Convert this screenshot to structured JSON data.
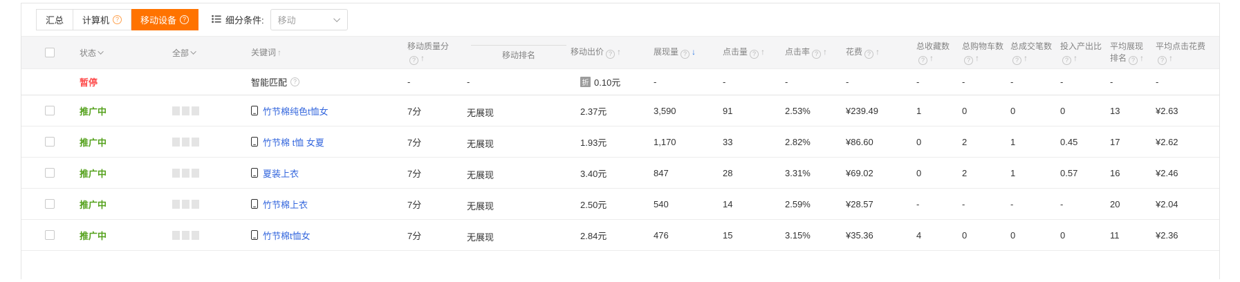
{
  "colors": {
    "accent": "#ff7300",
    "status_paused": "#fe4d4d",
    "status_active": "#54a11c",
    "keyword_link": "#3366dd",
    "sort_active_arrow": "#2f7ae5"
  },
  "icons": {
    "filter": "list-icon",
    "keyword_device": "mobile-phone-icon",
    "help": "question-circle-icon"
  },
  "toolbar": {
    "tabs": [
      {
        "key": "summary",
        "label": "汇总",
        "selected": false,
        "help": false
      },
      {
        "key": "computer",
        "label": "计算机",
        "selected": false,
        "help": true
      },
      {
        "key": "mobile",
        "label": "移动设备",
        "selected": true,
        "help": true
      }
    ],
    "filter_label": "细分条件:",
    "filter_value": "移动"
  },
  "table": {
    "header": {
      "status": "状态",
      "scope": "全部",
      "columns": [
        {
          "key": "keyword",
          "label": "关键词",
          "help": false,
          "sort": "up"
        },
        {
          "key": "quality",
          "label": "移动质量分",
          "help": true,
          "sort": "up"
        },
        {
          "key": "rank",
          "label": "移动排名",
          "help": false,
          "sort": "",
          "subline": true
        },
        {
          "key": "bid",
          "label": "移动出价",
          "help": true,
          "sort": "up"
        },
        {
          "key": "impressions",
          "label": "展现量",
          "help": true,
          "sort": "down",
          "sort_active": true
        },
        {
          "key": "clicks",
          "label": "点击量",
          "help": true,
          "sort": "up"
        },
        {
          "key": "ctr",
          "label": "点击率",
          "help": true,
          "sort": "up"
        },
        {
          "key": "spend",
          "label": "花费",
          "help": true,
          "sort": "up"
        },
        {
          "key": "favorites",
          "label": "总收藏数",
          "help": true,
          "sort": "up"
        },
        {
          "key": "carts",
          "label": "总购物车数",
          "help": true,
          "sort": "up"
        },
        {
          "key": "orders",
          "label": "总成交笔数",
          "help": true,
          "sort": "up"
        },
        {
          "key": "roi",
          "label": "投入产出比",
          "help": true,
          "sort": "up"
        },
        {
          "key": "avg_rank",
          "label": "平均展现排名",
          "help": true,
          "sort": "up"
        },
        {
          "key": "avg_cpc",
          "label": "平均点击花费",
          "help": true,
          "sort": "up"
        }
      ]
    },
    "rows": [
      {
        "type": "smart",
        "status": "暂停",
        "keyword": "智能匹配",
        "keyword_help": true,
        "quality": "-",
        "rank": "-",
        "bid": "0.10元",
        "bid_badge": "折",
        "impressions": "-",
        "clicks": "-",
        "ctr": "-",
        "spend": "-",
        "favorites": "-",
        "carts": "-",
        "orders": "-",
        "roi": "-",
        "avg_rank": "-",
        "avg_cpc": "-"
      },
      {
        "type": "keyword",
        "status": "推广中",
        "keyword": "竹节棉纯色t恤女",
        "quality": "7分",
        "rank": "无展现",
        "bid": "2.37元",
        "impressions": "3,590",
        "clicks": "91",
        "ctr": "2.53%",
        "spend": "¥239.49",
        "favorites": "1",
        "carts": "0",
        "orders": "0",
        "roi": "0",
        "avg_rank": "13",
        "avg_cpc": "¥2.63"
      },
      {
        "type": "keyword",
        "status": "推广中",
        "keyword": "竹节棉 t恤 女夏",
        "quality": "7分",
        "rank": "无展现",
        "bid": "1.93元",
        "impressions": "1,170",
        "clicks": "33",
        "ctr": "2.82%",
        "spend": "¥86.60",
        "favorites": "0",
        "carts": "2",
        "orders": "1",
        "roi": "0.45",
        "avg_rank": "17",
        "avg_cpc": "¥2.62"
      },
      {
        "type": "keyword",
        "status": "推广中",
        "keyword": "夏装上衣",
        "quality": "7分",
        "rank": "无展现",
        "bid": "3.40元",
        "impressions": "847",
        "clicks": "28",
        "ctr": "3.31%",
        "spend": "¥69.02",
        "favorites": "0",
        "carts": "2",
        "orders": "1",
        "roi": "0.57",
        "avg_rank": "16",
        "avg_cpc": "¥2.46"
      },
      {
        "type": "keyword",
        "status": "推广中",
        "keyword": "竹节棉上衣",
        "quality": "7分",
        "rank": "无展现",
        "bid": "2.50元",
        "impressions": "540",
        "clicks": "14",
        "ctr": "2.59%",
        "spend": "¥28.57",
        "favorites": "-",
        "carts": "-",
        "orders": "-",
        "roi": "-",
        "avg_rank": "20",
        "avg_cpc": "¥2.04"
      },
      {
        "type": "keyword",
        "status": "推广中",
        "keyword": "竹节棉t恤女",
        "quality": "7分",
        "rank": "无展现",
        "bid": "2.84元",
        "impressions": "476",
        "clicks": "15",
        "ctr": "3.15%",
        "spend": "¥35.36",
        "favorites": "4",
        "carts": "0",
        "orders": "0",
        "roi": "0",
        "avg_rank": "11",
        "avg_cpc": "¥2.36"
      }
    ]
  }
}
